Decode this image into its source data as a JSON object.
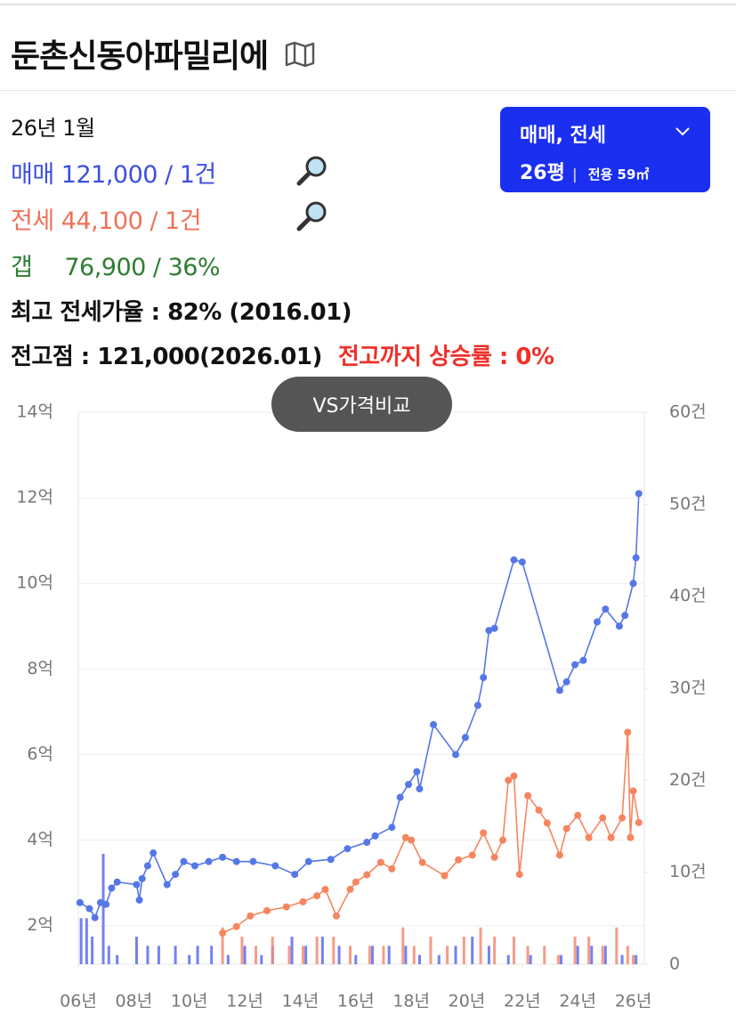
{
  "header": {
    "title": "둔촌신동아파밀리에"
  },
  "summary": {
    "date": "26년 1월",
    "sale_label": "매매",
    "sale_text": "121,000 / 1건",
    "jeonse_label": "전세",
    "jeonse_text": "44,100 / 1건",
    "gap_label": "갭",
    "gap_text": "76,900 / 36%",
    "max_ratio": "최고 전세가율 : 82% (2016.01)",
    "peak": "전고점 : 121,000(2026.01)",
    "peak_rise": "전고까지 상승률 : 0%"
  },
  "selector": {
    "deal_type": "매매, 전세",
    "size": "26평",
    "area": "전용 59㎡"
  },
  "compare_button": "VS가격비교",
  "chart_data": {
    "type": "combo",
    "xlim": [
      2006,
      2026.4
    ],
    "xticks": [
      {
        "value": 2006,
        "label": "06년"
      },
      {
        "value": 2008,
        "label": "08년"
      },
      {
        "value": 2010,
        "label": "10년"
      },
      {
        "value": 2012,
        "label": "12년"
      },
      {
        "value": 2014,
        "label": "14년"
      },
      {
        "value": 2016,
        "label": "16년"
      },
      {
        "value": 2018,
        "label": "18년"
      },
      {
        "value": 2020,
        "label": "20년"
      },
      {
        "value": 2022,
        "label": "22년"
      },
      {
        "value": 2024,
        "label": "24년"
      },
      {
        "value": 2026,
        "label": "26년"
      }
    ],
    "ylim": [
      1.1,
      14
    ],
    "yticks": [
      {
        "value": 2,
        "label": "2억"
      },
      {
        "value": 4,
        "label": "4억"
      },
      {
        "value": 6,
        "label": "6억"
      },
      {
        "value": 8,
        "label": "8억"
      },
      {
        "value": 10,
        "label": "10억"
      },
      {
        "value": 12,
        "label": "12억"
      },
      {
        "value": 14,
        "label": "14억"
      }
    ],
    "y2lim": [
      0,
      60
    ],
    "y2ticks": [
      0,
      {
        "value": 10,
        "label": "10건"
      },
      {
        "value": 20,
        "label": "20건"
      },
      {
        "value": 30,
        "label": "30건"
      },
      {
        "value": 40,
        "label": "40건"
      },
      {
        "value": 50,
        "label": "50건"
      },
      {
        "value": 60,
        "label": "60건"
      }
    ],
    "grid": true,
    "series": [
      {
        "type": "bar",
        "axis": "y2",
        "color": "#5b6cf0",
        "x": [
          2006.1,
          2006.3,
          2006.5,
          2006.9,
          2007.1,
          2007.4,
          2008.1,
          2008.5,
          2008.9,
          2009.5,
          2010.0,
          2010.3,
          2010.8,
          2011.4,
          2012.0,
          2012.6,
          2013.0,
          2013.7,
          2014.2,
          2014.8,
          2015.4,
          2016.0,
          2016.6,
          2017.2,
          2017.8,
          2018.3,
          2019.0,
          2019.6,
          2020.2,
          2020.8,
          2021.5,
          2022.3,
          2023.4,
          2024.0,
          2024.5,
          2025.0,
          2025.6,
          2026.1
        ],
        "values": [
          5,
          5,
          3,
          12,
          2,
          1,
          3,
          2,
          2,
          2,
          1,
          2,
          2,
          1,
          2,
          1,
          2,
          3,
          2,
          3,
          2,
          1,
          2,
          2,
          2,
          1,
          1,
          2,
          3,
          2,
          1,
          1,
          1,
          2,
          2,
          2,
          1,
          1
        ]
      },
      {
        "type": "bar",
        "axis": "y2",
        "color": "#f58b73",
        "x": [
          2011.2,
          2011.9,
          2012.4,
          2013.0,
          2013.6,
          2014.1,
          2014.6,
          2015.2,
          2015.8,
          2016.5,
          2017.0,
          2017.7,
          2018.1,
          2018.7,
          2019.3,
          2019.9,
          2020.5,
          2021.0,
          2021.7,
          2022.2,
          2022.8,
          2023.3,
          2023.9,
          2024.4,
          2024.9,
          2025.4,
          2025.8,
          2026.0
        ],
        "values": [
          4,
          3,
          2,
          3,
          2,
          2,
          3,
          3,
          2,
          2,
          2,
          4,
          2,
          3,
          2,
          3,
          4,
          3,
          3,
          2,
          2,
          1,
          3,
          3,
          2,
          4,
          2,
          1
        ]
      },
      {
        "type": "line",
        "name": "전세",
        "color": "#f5855f",
        "x": [
          2011.2,
          2011.7,
          2012.2,
          2012.8,
          2013.5,
          2014.1,
          2014.6,
          2014.9,
          2015.3,
          2015.8,
          2016.0,
          2016.4,
          2016.9,
          2017.3,
          2017.8,
          2018.0,
          2018.4,
          2019.2,
          2019.7,
          2020.2,
          2020.6,
          2021.0,
          2021.3,
          2021.5,
          2021.7,
          2021.9,
          2022.2,
          2022.6,
          2022.9,
          2023.35,
          2023.6,
          2024.0,
          2024.4,
          2024.9,
          2025.2,
          2025.6,
          2025.8,
          2025.9,
          2026.0,
          2026.2
        ],
        "values": [
          1.83,
          1.98,
          2.23,
          2.35,
          2.44,
          2.56,
          2.7,
          2.85,
          2.23,
          2.85,
          3.02,
          3.19,
          3.48,
          3.33,
          4.06,
          4.0,
          3.48,
          3.17,
          3.54,
          3.65,
          4.17,
          3.6,
          4.0,
          5.4,
          5.5,
          3.2,
          5.04,
          4.7,
          4.4,
          3.65,
          4.27,
          4.58,
          4.06,
          4.52,
          4.06,
          4.52,
          6.52,
          4.06,
          5.15,
          4.41
        ]
      },
      {
        "type": "line",
        "name": "매매",
        "color": "#5577e8",
        "x": [
          2006.06,
          2006.4,
          2006.6,
          2006.8,
          2007.0,
          2007.2,
          2007.4,
          2008.1,
          2008.2,
          2008.3,
          2008.5,
          2008.7,
          2009.2,
          2009.5,
          2009.8,
          2010.2,
          2010.7,
          2011.2,
          2011.7,
          2012.3,
          2013.1,
          2013.8,
          2014.3,
          2015.1,
          2015.7,
          2016.4,
          2016.7,
          2017.3,
          2017.6,
          2017.9,
          2018.2,
          2018.3,
          2018.8,
          2019.6,
          2019.95,
          2020.4,
          2020.6,
          2020.8,
          2021.0,
          2021.7,
          2022.0,
          2023.35,
          2023.6,
          2023.9,
          2024.2,
          2024.7,
          2025.0,
          2025.5,
          2025.7,
          2026.0,
          2026.1,
          2026.2
        ],
        "values": [
          2.54,
          2.4,
          2.19,
          2.54,
          2.5,
          2.88,
          3.02,
          2.96,
          2.6,
          3.1,
          3.4,
          3.7,
          2.96,
          3.2,
          3.5,
          3.4,
          3.5,
          3.6,
          3.5,
          3.5,
          3.4,
          3.2,
          3.5,
          3.55,
          3.8,
          3.95,
          4.1,
          4.3,
          5.0,
          5.3,
          5.6,
          5.2,
          6.7,
          6.0,
          6.4,
          7.15,
          7.8,
          8.9,
          8.95,
          10.55,
          10.5,
          7.5,
          7.7,
          8.1,
          8.2,
          9.1,
          9.4,
          9.0,
          9.25,
          10.0,
          10.6,
          12.1
        ]
      }
    ]
  }
}
